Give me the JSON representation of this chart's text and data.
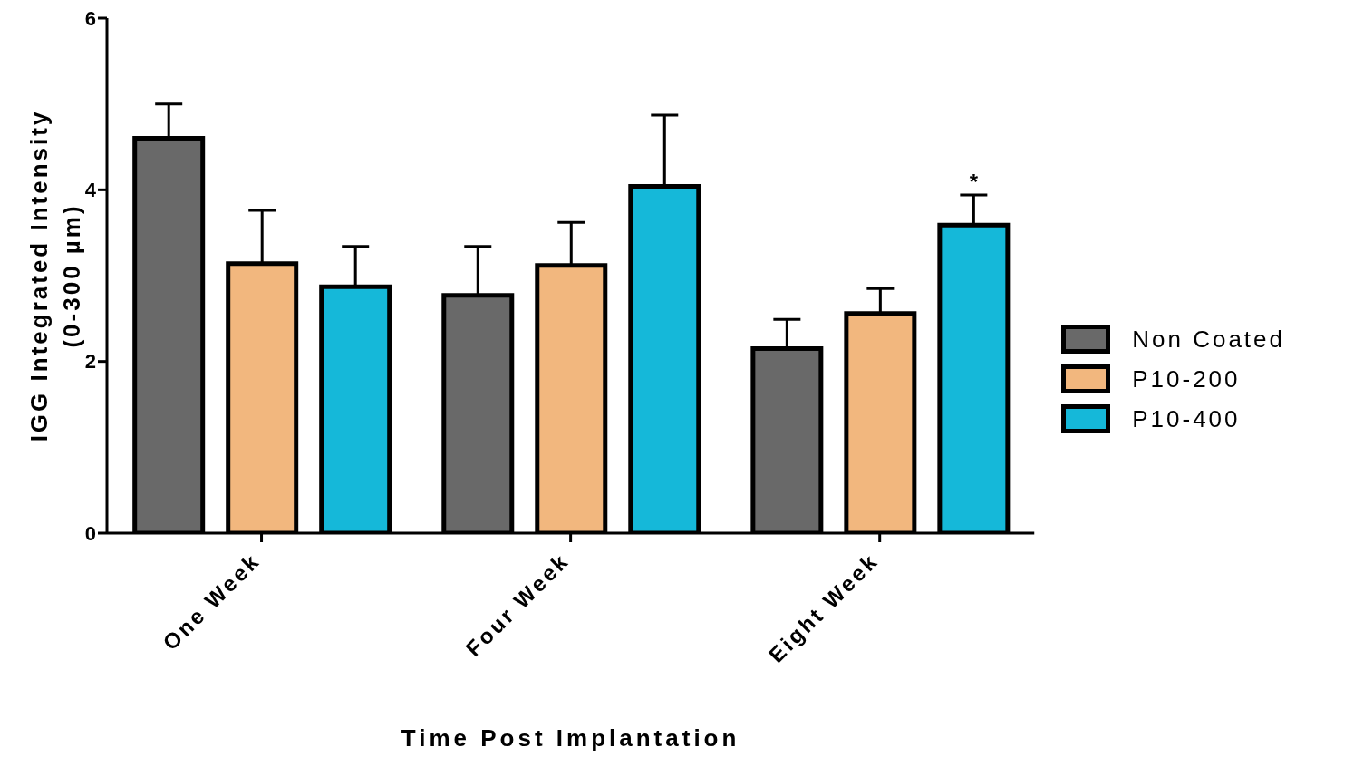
{
  "chart_data": {
    "type": "bar",
    "xlabel": "Time Post Implantation",
    "ylabel": "IGG Integrated Intensity\n(0-300 µm)",
    "categories": [
      "One Week",
      "Four Week",
      "Eight Week"
    ],
    "series": [
      {
        "name": "Non Coated",
        "color": "#696969",
        "values": [
          4.6,
          2.77,
          2.15
        ],
        "errors": [
          [
            4.6,
            5.0
          ],
          [
            2.77,
            3.34
          ],
          [
            2.15,
            2.49
          ]
        ]
      },
      {
        "name": "P10-200",
        "color": "#f2b77e",
        "values": [
          3.14,
          3.12,
          2.56
        ],
        "errors": [
          [
            3.14,
            3.76
          ],
          [
            3.12,
            3.62
          ],
          [
            2.56,
            2.85
          ]
        ]
      },
      {
        "name": "P10-400",
        "color": "#15b8d9",
        "values": [
          2.87,
          4.04,
          3.59
        ],
        "errors": [
          [
            2.87,
            3.34
          ],
          [
            4.04,
            4.87
          ],
          [
            3.59,
            3.94
          ]
        ]
      }
    ],
    "ylim": [
      0,
      6
    ],
    "yticks": [
      0,
      2,
      4,
      6
    ],
    "grid": false,
    "legend": "right",
    "annotations": [
      "*"
    ]
  }
}
